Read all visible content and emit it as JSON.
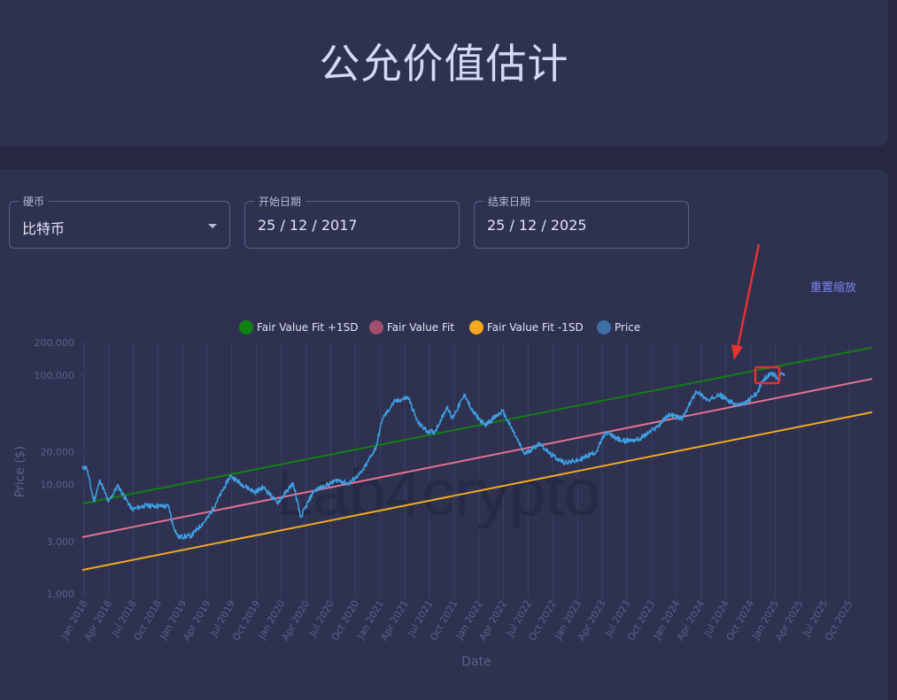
{
  "page": {
    "title": "公允价值估计",
    "reset_zoom": "重置缩放"
  },
  "filters": {
    "coin": {
      "label": "硬币",
      "value": "比特币"
    },
    "start": {
      "label": "开始日期",
      "value": "25 / 12 / 2017"
    },
    "end": {
      "label": "结束日期",
      "value": "25 / 12 / 2025"
    }
  },
  "watermark": "Lab4crypto",
  "colors": {
    "upper": "#128012",
    "fit": "#e2728f",
    "lower": "#f3a81f",
    "price": "#3f9ee2",
    "legend_fit": "#a14f6e",
    "legend_price": "#3d6fa5",
    "highlight": "#e2332f"
  },
  "chart_data": {
    "type": "line",
    "scale": "log",
    "xlabel": "Date",
    "ylabel": "Price ($)",
    "xlim": [
      "2018-01-01",
      "2025-12-25"
    ],
    "ylim": [
      1000,
      200000
    ],
    "y_ticks": [
      1000,
      3000,
      10000,
      20000,
      100000,
      200000
    ],
    "y_tick_labels": [
      "1,000",
      "3,000",
      "10,000",
      "20,000",
      "100,000",
      "200,000"
    ],
    "x_tick_labels": [
      "Jan 2018",
      "Apr 2018",
      "Jul 2018",
      "Oct 2018",
      "Jan 2019",
      "Apr 2019",
      "Jul 2019",
      "Oct 2019",
      "Jan 2020",
      "Apr 2020",
      "Jul 2020",
      "Oct 2020",
      "Jan 2021",
      "Apr 2021",
      "Jul 2021",
      "Oct 2021",
      "Jan 2022",
      "Apr 2022",
      "Jul 2022",
      "Oct 2022",
      "Jan 2023",
      "Apr 2023",
      "Jul 2023",
      "Oct 2023",
      "Jan 2024",
      "Apr 2024",
      "Jul 2024",
      "Oct 2024",
      "Jan 2025",
      "Apr 2025",
      "Jul 2025",
      "Oct 2025"
    ],
    "legend_position": "top",
    "grid": "vertical",
    "series": [
      {
        "name": "Fair Value Fit +1SD",
        "x": [
          "2017-12-25",
          "2025-12-25"
        ],
        "y": [
          6700,
          180000
        ]
      },
      {
        "name": "Fair Value Fit",
        "x": [
          "2017-12-25",
          "2025-12-25"
        ],
        "y": [
          3300,
          93000
        ]
      },
      {
        "name": "Fair Value Fit -1SD",
        "x": [
          "2017-12-25",
          "2025-12-25"
        ],
        "y": [
          1650,
          46000
        ]
      },
      {
        "name": "Price",
        "x": [
          "2017-12-25",
          "2018-01-10",
          "2018-02-06",
          "2018-03-01",
          "2018-04-01",
          "2018-05-05",
          "2018-06-28",
          "2018-08-10",
          "2018-09-15",
          "2018-11-10",
          "2018-11-25",
          "2018-12-15",
          "2019-02-01",
          "2019-04-05",
          "2019-06-26",
          "2019-08-10",
          "2019-09-25",
          "2019-10-26",
          "2019-12-17",
          "2020-02-13",
          "2020-03-12",
          "2020-04-30",
          "2020-06-01",
          "2020-07-27",
          "2020-09-05",
          "2020-10-25",
          "2020-12-16",
          "2021-01-08",
          "2021-02-21",
          "2021-04-14",
          "2021-05-19",
          "2021-06-22",
          "2021-07-20",
          "2021-09-06",
          "2021-09-22",
          "2021-11-10",
          "2021-12-04",
          "2022-01-22",
          "2022-03-29",
          "2022-05-09",
          "2022-06-18",
          "2022-08-14",
          "2022-09-20",
          "2022-11-09",
          "2022-12-31",
          "2023-03-10",
          "2023-04-14",
          "2023-06-15",
          "2023-08-17",
          "2023-10-23",
          "2023-12-05",
          "2024-01-23",
          "2024-03-14",
          "2024-05-01",
          "2024-06-01",
          "2024-08-05",
          "2024-09-06",
          "2024-10-28",
          "2024-11-12",
          "2024-12-17",
          "2025-01-13",
          "2025-01-20",
          "2025-02-03"
        ],
        "y": [
          14000,
          14500,
          7000,
          11000,
          6900,
          9800,
          5900,
          6400,
          6400,
          6300,
          4300,
          3300,
          3400,
          5000,
          12000,
          10000,
          8500,
          9500,
          6800,
          10300,
          5000,
          8800,
          9500,
          11000,
          10200,
          13000,
          22000,
          40000,
          57000,
          63000,
          37000,
          31000,
          30000,
          52000,
          40000,
          67000,
          48000,
          35000,
          47000,
          30000,
          19000,
          24000,
          19000,
          16000,
          16500,
          20000,
          30000,
          25000,
          26000,
          34000,
          44000,
          40000,
          72000,
          58000,
          68000,
          54000,
          54000,
          70000,
          88000,
          106000,
          91000,
          106000,
          98000
        ]
      }
    ]
  }
}
